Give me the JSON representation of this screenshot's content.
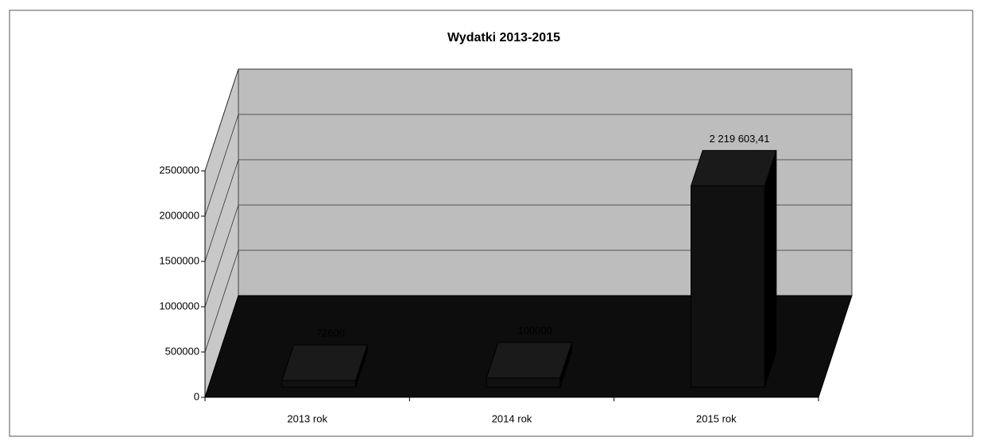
{
  "chart_data": {
    "type": "bar",
    "title": "Wydatki 2013-2015",
    "categories": [
      "2013 rok",
      "2014 rok",
      "2015 rok"
    ],
    "values": [
      72600,
      100000,
      2219603.41
    ],
    "value_labels": [
      "72600",
      "100000",
      "2 219 603,41"
    ],
    "color": "#111111",
    "ylim": [
      0,
      2500000
    ],
    "yticks": [
      0,
      500000,
      1000000,
      1500000,
      2000000,
      2500000
    ],
    "grid": true
  }
}
